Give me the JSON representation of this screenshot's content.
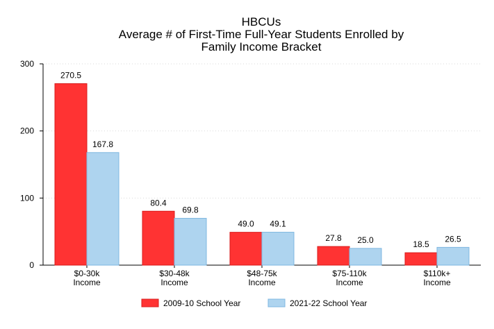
{
  "chart_data": {
    "type": "bar",
    "title": [
      "HBCUs",
      "Average # of First-Time Full-Year Students Enrolled by",
      "Family Income Bracket"
    ],
    "categories": [
      [
        "$0-30k",
        "Income"
      ],
      [
        "$30-48k",
        "Income"
      ],
      [
        "$48-75k",
        "Income"
      ],
      [
        "$75-110k",
        "Income"
      ],
      [
        "$110k+",
        "Income"
      ]
    ],
    "series": [
      {
        "name": "2009-10 School Year",
        "values": [
          270.5,
          80.4,
          49.0,
          27.8,
          18.5
        ],
        "labels": [
          "270.5",
          "80.4",
          "49.0",
          "27.8",
          "18.5"
        ],
        "color": "#ff3333",
        "stroke": "#d91c1c"
      },
      {
        "name": "2021-22 School Year",
        "values": [
          167.8,
          69.8,
          49.1,
          25.0,
          26.5
        ],
        "labels": [
          "167.8",
          "69.8",
          "49.1",
          "25.0",
          "26.5"
        ],
        "color": "#aed4ef",
        "stroke": "#7fb7e0"
      }
    ],
    "ylim": [
      0,
      300
    ],
    "yticks": [
      "0",
      "100",
      "200",
      "300"
    ],
    "xlabel": "",
    "ylabel": "",
    "grid": true,
    "legend": "bottom"
  }
}
